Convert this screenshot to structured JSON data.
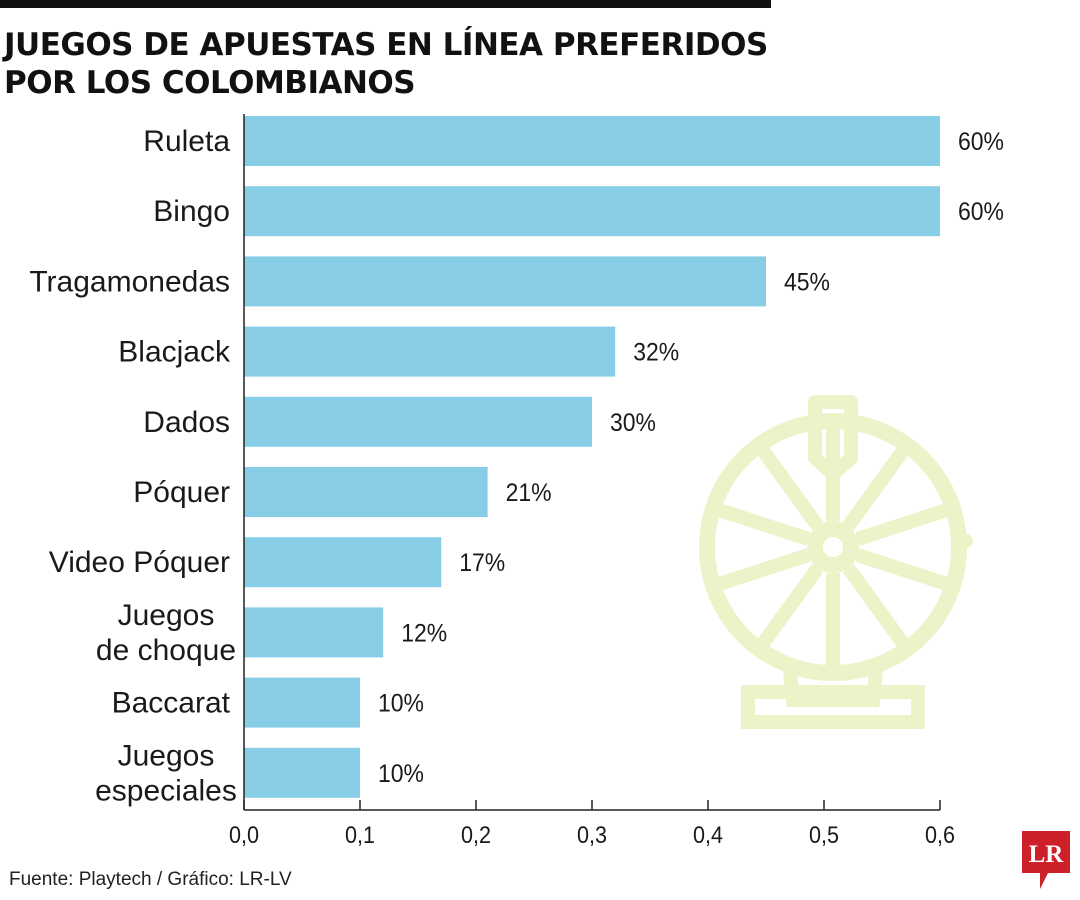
{
  "title_lines": [
    "JUEGOS DE APUESTAS EN LÍNEA PREFERIDOS",
    "POR LOS COLOMBIANOS"
  ],
  "source": "Fuente: Playtech / Gráfico: LR-LV",
  "logo_text": "LR",
  "colors": {
    "bar": "#87cde6",
    "wheel": "#eef2c8",
    "logo": "#cc2128",
    "text": "#1a1a1a"
  },
  "chart_data": {
    "type": "bar",
    "orientation": "horizontal",
    "categories": [
      [
        "Ruleta"
      ],
      [
        "Bingo"
      ],
      [
        "Tragamonedas"
      ],
      [
        "Blacjack"
      ],
      [
        "Dados"
      ],
      [
        "Póquer"
      ],
      [
        "Video Póquer"
      ],
      [
        "Juegos",
        "de choque"
      ],
      [
        "Baccarat"
      ],
      [
        "Juegos",
        "especiales"
      ]
    ],
    "values": [
      0.6,
      0.6,
      0.45,
      0.32,
      0.3,
      0.21,
      0.17,
      0.12,
      0.1,
      0.1
    ],
    "data_labels": [
      "60%",
      "60%",
      "45%",
      "32%",
      "30%",
      "21%",
      "17%",
      "12%",
      "10%",
      "10%"
    ],
    "x_ticks": [
      "0,0",
      "0,1",
      "0,2",
      "0,3",
      "0,4",
      "0,5",
      "0,6"
    ],
    "xlim": [
      0,
      0.6
    ],
    "grid": false
  }
}
